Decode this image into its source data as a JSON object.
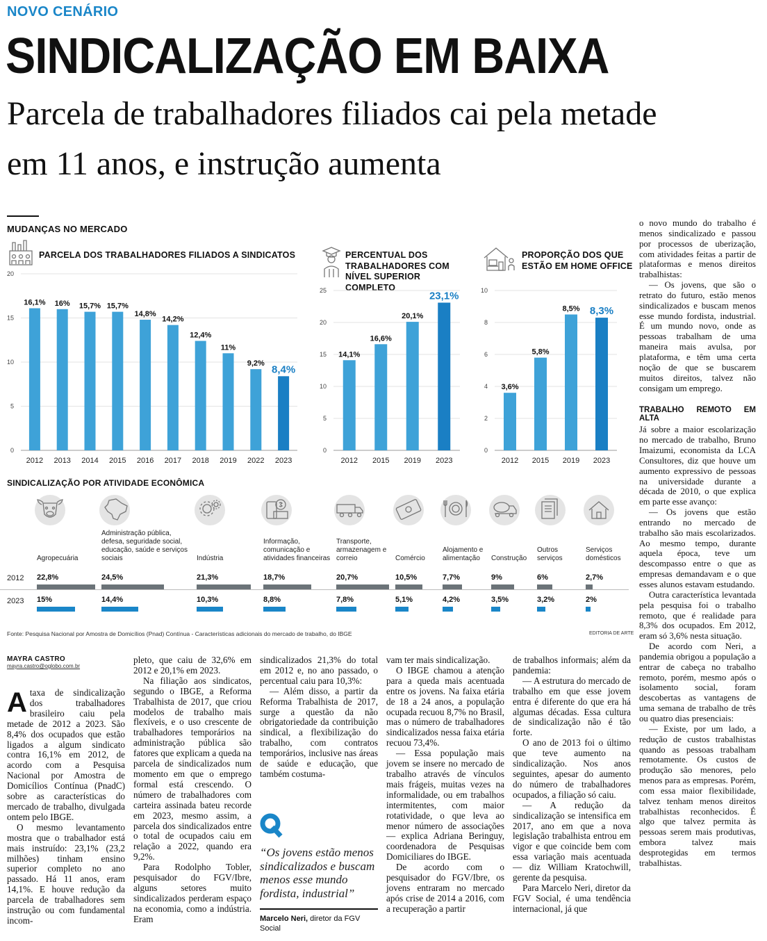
{
  "header": {
    "kicker": "NOVO CENÁRIO",
    "headline": "SINDICALIZAÇÃO EM BAIXA",
    "subhead": "Parcela de trabalhadores filiados cai pela metade em 11 anos, e instrução aumenta"
  },
  "graphic": {
    "section_title": "MUDANÇAS NO MERCADO",
    "activity_title": "SINDICALIZAÇÃO POR ATIVIDADE ECONÔMICA",
    "source": "Fonte: Pesquisa Nacional por Amostra de Domicílios (Pnad) Contínua - Características adicionais do mercado de trabalho, do IBGE",
    "credit": "EDITORIA DE ARTE",
    "colors": {
      "bar": "#3ea2d8",
      "highlight": "#1a7fc4",
      "bar_2012": "#6b7378",
      "bar_2023": "#1a86c8"
    }
  },
  "chart_data": [
    {
      "type": "bar",
      "title": "PARCELA DOS TRABALHADORES FILIADOS A SINDICATOS",
      "categories": [
        "2012",
        "2013",
        "2014",
        "2015",
        "2016",
        "2017",
        "2018",
        "2019",
        "2022",
        "2023"
      ],
      "values": [
        16.1,
        16,
        15.7,
        15.7,
        14.8,
        14.2,
        12.4,
        11,
        9.2,
        8.4
      ],
      "labels": [
        "16,1%",
        "16%",
        "15,7%",
        "15,7%",
        "14,8%",
        "14,2%",
        "12,4%",
        "11%",
        "9,2%",
        "8,4%"
      ],
      "yticks": [
        "0",
        "5",
        "10",
        "15",
        "20"
      ],
      "ylim": [
        0,
        20
      ]
    },
    {
      "type": "bar",
      "title": "PERCENTUAL DOS TRABALHADORES COM NÍVEL SUPERIOR COMPLETO",
      "categories": [
        "2012",
        "2015",
        "2019",
        "2023"
      ],
      "values": [
        14.1,
        16.6,
        20.1,
        23.1
      ],
      "labels": [
        "14,1%",
        "16,6%",
        "20,1%",
        "23,1%"
      ],
      "yticks": [
        "0",
        "5",
        "10",
        "15",
        "20",
        "25"
      ],
      "ylim": [
        0,
        25
      ]
    },
    {
      "type": "bar",
      "title": "PROPORÇÃO DOS QUE ESTÃO EM HOME OFFICE",
      "categories": [
        "2012",
        "2015",
        "2019",
        "2023"
      ],
      "values": [
        3.6,
        5.8,
        8.5,
        8.3
      ],
      "labels": [
        "3,6%",
        "5,8%",
        "8,5%",
        "8,3%"
      ],
      "yticks": [
        "0",
        "2",
        "4",
        "6",
        "8",
        "10"
      ],
      "ylim": [
        0,
        10
      ]
    },
    {
      "type": "bar",
      "title": "SINDICALIZAÇÃO POR ATIVIDADE ECONÔMICA",
      "years": [
        "2012",
        "2023"
      ],
      "categories": [
        {
          "icon": "cow-icon",
          "name": "Agropecuária",
          "v2012": 22.8,
          "l2012": "22,8%",
          "v2023": 15,
          "l2023": "15%"
        },
        {
          "icon": "brazil-map-icon",
          "name": "Administração pública, defesa, seguridade social, educação, saúde e serviços sociais",
          "v2012": 24.5,
          "l2012": "24,5%",
          "v2023": 14.4,
          "l2023": "14,4%"
        },
        {
          "icon": "gears-icon",
          "name": "Indústria",
          "v2012": 21.3,
          "l2012": "21,3%",
          "v2023": 10.3,
          "l2023": "10,3%"
        },
        {
          "icon": "phone-money-icon",
          "name": "Informação, comunicação e atividades financeiras",
          "v2012": 18.7,
          "l2012": "18,7%",
          "v2023": 8.8,
          "l2023": "8,8%"
        },
        {
          "icon": "truck-icon",
          "name": "Transporte, armazenagem e correio",
          "v2012": 20.7,
          "l2012": "20,7%",
          "v2023": 7.8,
          "l2023": "7,8%"
        },
        {
          "icon": "banknote-icon",
          "name": "Comércio",
          "v2012": 10.5,
          "l2012": "10,5%",
          "v2023": 5.1,
          "l2023": "5,1%"
        },
        {
          "icon": "cutlery-icon",
          "name": "Alojamento e alimentação",
          "v2012": 7.7,
          "l2012": "7,7%",
          "v2023": 4.2,
          "l2023": "4,2%"
        },
        {
          "icon": "mixer-truck-icon",
          "name": "Construção",
          "v2012": 9,
          "l2012": "9%",
          "v2023": 3.5,
          "l2023": "3,5%"
        },
        {
          "icon": "documents-icon",
          "name": "Outros serviços",
          "v2012": 6,
          "l2012": "6%",
          "v2023": 3.2,
          "l2023": "3,2%"
        },
        {
          "icon": "home-icon",
          "name": "Serviços domésticos",
          "v2012": 2.7,
          "l2012": "2,7%",
          "v2023": 2,
          "l2023": "2%"
        }
      ]
    }
  ],
  "sidebar": {
    "p1": "o novo mundo do trabalho é menos sindicalizado e passou por processos de uberização, com atividades feitas a partir de plataformas e menos direitos trabalhistas:",
    "p2": "— Os jovens, que são o retrato do futuro, estão menos sindicalizados e buscam menos esse mundo fordista, industrial. É um mundo novo, onde as pessoas trabalham de uma maneira mais avulsa, por plataforma, e têm uma certa noção de que se buscarem muitos direitos, talvez não consigam um emprego.",
    "subhead": "TRABALHO REMOTO EM ALTA",
    "p3": "Já sobre a maior escolarização no mercado de trabalho, Bruno Imaizumi, economista da LCA Consultores, diz que houve um aumento expressivo de pessoas na universidade durante a década de 2010, o que explica em parte esse avanço:",
    "p4": "— Os jovens que estão entrando no mercado de trabalho são mais escolarizados. Ao mesmo tempo, durante aquela época, teve um descompasso entre o que as empresas demandavam e o que esses alunos estavam estudando.",
    "p5": "Outra característica levantada pela pesquisa foi o trabalho remoto, que é realidade para 8,3% dos ocupados. Em 2012, eram só 3,6% nesta situação.",
    "p6": "De acordo com Neri, a pandemia obrigou a população a entrar de cabeça no trabalho remoto, porém, mesmo após o isolamento social, foram descobertas as vantagens de uma semana de trabalho de três ou quatro dias presenciais:",
    "p7": "— Existe, por um lado, a redução de custos trabalhistas quando as pessoas trabalham remotamente. Os custos de produção são menores, pelo menos para as empresas. Porém, com essa maior flexibilidade, talvez tenham menos direitos trabalhistas reconhecidos. É algo que talvez permita às pessoas serem mais produtivas, embora talvez mais desprotegidas em termos trabalhistas."
  },
  "article": {
    "byline": "MAYRA CASTRO",
    "email": "mayra.castro@oglobo.com.br",
    "dropcap": "A",
    "c1p1": "taxa de sindicalização dos trabalhadores brasileiro caiu pela metade de 2012 a 2023. São 8,4% dos ocupados que estão ligados a algum sindicato contra 16,1% em 2012, de acordo com a Pesquisa Nacional por Amostra de Domicílios Contínua (PnadC) sobre as características do mercado de trabalho, divulgada ontem pelo IBGE.",
    "c1p2": "O mesmo levantamento mostra que o trabalhador está mais instruído: 23,1% (23,2 milhões) tinham ensino superior completo no ano passado. Há 11 anos, eram 14,1%. E houve redução da parcela de trabalhadores sem instrução ou com fundamental incom-",
    "c2p1": "pleto, que caiu de 32,6% em 2012 e 20,1% em 2023.",
    "c2p2": "Na filiação aos sindicatos, segundo o IBGE, a Reforma Trabalhista de 2017, que criou modelos de trabalho mais flexíveis, e o uso crescente de trabalhadores temporários na administração pública são fatores que explicam a queda na parcela de sindicalizados num momento em que o emprego formal está crescendo. O número de trabalhadores com carteira assinada bateu recorde em 2023, mesmo assim, a parcela dos sindicalizados entre o total de ocupados caiu em relação a 2022, quando era 9,2%.",
    "c2p3": "Para Rodolpho Tobler, pesquisador do FGV/Ibre, alguns setores muito sindicalizados perderam espaço na economia, como a indústria. Eram",
    "c3p1": "sindicalizados 21,3% do total em 2012 e, no ano passado, o percentual caiu para 10,3%:",
    "c3p2": "— Além disso, a partir da Reforma Trabalhista de 2017, surge a questão da não obrigatoriedade da contribuição sindical, a flexibilização do trabalho, com contratos temporários, inclusive nas áreas de saúde e educação, que também costuma-",
    "quote_mark": "Q",
    "quote": "“Os jovens estão menos sindicalizados e buscam menos esse mundo fordista, industrial”",
    "quote_author": "Marcelo Neri,",
    "quote_role": "diretor da FGV Social",
    "c4p1": "vam ter mais sindicalização.",
    "c4p2": "O IBGE chamou a atenção para a queda mais acentuada entre os jovens. Na faixa etária de 18 a 24 anos, a população ocupada recuou 8,7% no Brasil, mas o número de trabalhadores sindicalizados nessa faixa etária recuou 73,4%.",
    "c4p3": "— Essa população mais jovem se insere no mercado de trabalho através de vínculos mais frágeis, muitas vezes na informalidade, ou em trabalhos intermitentes, com maior rotatividade, o que leva ao menor número de associações — explica Adriana Beringuy, coordenadora de Pesquisas Domiciliares do IBGE.",
    "c4p4": "De acordo com o pesquisador do FGV/Ibre, os jovens entraram no mercado após crise de 2014 a 2016, com a recuperação a partir",
    "c5p1": "de trabalhos informais; além da pandemia:",
    "c5p2": "— A estrutura do mercado de trabalho em que esse jovem entra é diferente do que era há algumas décadas. Essa cultura de sindicalização não é tão forte.",
    "c5p3": "O ano de 2013 foi o último que teve aumento na sindicalização. Nos anos seguintes, apesar do aumento do número de trabalhadores ocupados, a filiação só caiu.",
    "c5p4": "— A redução da sindicalização se intensifica em 2017, ano em que a nova legislação trabalhista entrou em vigor e que coincide bem com essa variação mais acentuada — diz William Kratochwill, gerente da pesquisa.",
    "c5p5": "Para Marcelo Neri, diretor da FGV Social, é uma tendência internacional, já que"
  }
}
